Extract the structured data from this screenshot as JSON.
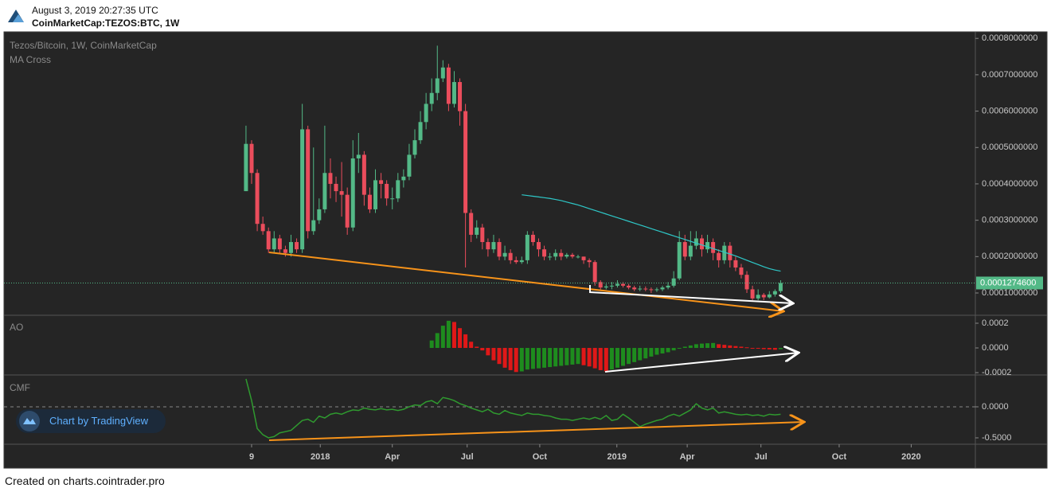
{
  "header": {
    "timestamp": "August 3, 2019 20:27:35 UTC",
    "symbol": "CoinMarketCap:TEZOS:BTC, 1W"
  },
  "footer": "Created on charts.cointrader.pro",
  "badge": "Chart by TradingView",
  "chart_data": {
    "type": "candlestick",
    "title": "Tezos/Bitcoin, 1W, CoinMarketCap",
    "up_color": "#53b987",
    "down_color": "#eb4d5c",
    "xlim": [
      -43,
      129.6
    ],
    "xticks": [
      {
        "value": 1,
        "label": "9"
      },
      {
        "value": 13.2,
        "label": "2018"
      },
      {
        "value": 26,
        "label": "Apr"
      },
      {
        "value": 39.3,
        "label": "Jul"
      },
      {
        "value": 52.2,
        "label": "Oct"
      },
      {
        "value": 65.9,
        "label": "2019"
      },
      {
        "value": 78.4,
        "label": "Apr"
      },
      {
        "value": 91.5,
        "label": "Jul"
      },
      {
        "value": 105.4,
        "label": "Oct"
      },
      {
        "value": 118.2,
        "label": "2020"
      }
    ],
    "ylim": [
      4.09e-05,
      0.000818
    ],
    "yticks": [
      {
        "value": 0.0008,
        "label": "0.0008000000"
      },
      {
        "value": 0.0007,
        "label": "0.0007000000"
      },
      {
        "value": 0.0006,
        "label": "0.0006000000"
      },
      {
        "value": 0.0005,
        "label": "0.0005000000"
      },
      {
        "value": 0.0004,
        "label": "0.0004000000"
      },
      {
        "value": 0.0003,
        "label": "0.0003000000"
      },
      {
        "value": 0.0002,
        "label": "0.0002000000"
      },
      {
        "value": 0.0001,
        "label": "0.0001000000"
      }
    ],
    "last_price": {
      "value": 0.00012746,
      "label": "0.0001274600"
    },
    "x": [
      0,
      1,
      2,
      3,
      4,
      5,
      6,
      7,
      8,
      9,
      10,
      11,
      12,
      13,
      14,
      15,
      16,
      17,
      18,
      19,
      20,
      21,
      22,
      23,
      24,
      25,
      26,
      27,
      28,
      29,
      30,
      31,
      32,
      33,
      34,
      35,
      36,
      37,
      38,
      39,
      40,
      41,
      42,
      43,
      44,
      45,
      46,
      47,
      48,
      49,
      50,
      51,
      52,
      53,
      54,
      55,
      56,
      57,
      58,
      59,
      60,
      61,
      62,
      63,
      64,
      65,
      66,
      67,
      68,
      69,
      70,
      71,
      72,
      73,
      74,
      75,
      76,
      77,
      78,
      79,
      80,
      81,
      82,
      83,
      84,
      85,
      86,
      87,
      88,
      89,
      90,
      91,
      92,
      93,
      94,
      95
    ],
    "open": [
      0.00038,
      0.00051,
      0.00043,
      0.00029,
      0.00027,
      0.00022,
      0.00025,
      0.00022,
      0.00021,
      0.00024,
      0.00022,
      0.00055,
      0.00027,
      0.0003,
      0.00033,
      0.00043,
      0.0004,
      0.00038,
      0.00037,
      0.00028,
      0.00047,
      0.00048,
      0.00037,
      0.00033,
      0.00041,
      0.0004,
      0.00036,
      0.00036,
      0.00041,
      0.00042,
      0.00048,
      0.00052,
      0.00057,
      0.00062,
      0.00065,
      0.00069,
      0.00072,
      0.00062,
      0.00068,
      0.0006,
      0.00032,
      0.00026,
      0.00028,
      0.00024,
      0.00022,
      0.00024,
      0.0002,
      0.00021,
      0.00019,
      0.000185,
      0.00019,
      0.00026,
      0.00024,
      0.00022,
      0.0002,
      0.0002,
      0.00021,
      0.0002,
      0.000205,
      0.0002,
      0.0002,
      0.00019,
      0.000185,
      0.00013,
      0.000115,
      0.000118,
      0.00012,
      0.000125,
      0.00012,
      0.000115,
      0.00011,
      0.000112,
      0.00011,
      0.000108,
      0.00011,
      0.000115,
      0.00012,
      0.00014,
      0.00024,
      0.0002,
      0.00023,
      0.00025,
      0.00022,
      0.00024,
      0.00021,
      0.00019,
      0.00023,
      0.00019,
      0.00017,
      0.00015,
      0.00011,
      8.5e-05,
      9.5e-05,
      8.8e-05,
      9.6e-05,
      0.000105
    ],
    "high": [
      0.00056,
      0.00052,
      0.00044,
      0.00031,
      0.00028,
      0.00027,
      0.00026,
      0.00023,
      0.00026,
      0.00025,
      0.00062,
      0.00056,
      0.0005,
      0.00036,
      0.00056,
      0.00047,
      0.00042,
      0.00046,
      0.00039,
      0.00052,
      0.00054,
      0.00049,
      0.00039,
      0.00044,
      0.00043,
      0.00041,
      0.00039,
      0.00043,
      0.00044,
      0.00051,
      0.00055,
      0.0006,
      0.00065,
      0.00069,
      0.00078,
      0.00074,
      0.00073,
      0.00071,
      0.00069,
      0.00062,
      0.00033,
      0.0003,
      0.00029,
      0.00025,
      0.00026,
      0.00025,
      0.00023,
      0.00022,
      0.0002,
      0.0002,
      0.00027,
      0.00027,
      0.00025,
      0.00023,
      0.00021,
      0.00022,
      0.00022,
      0.00021,
      0.00021,
      0.000205,
      0.0002,
      0.000195,
      0.00019,
      0.000135,
      0.000125,
      0.00013,
      0.000135,
      0.00013,
      0.000125,
      0.00012,
      0.00012,
      0.000118,
      0.000115,
      0.000115,
      0.00012,
      0.00013,
      0.00016,
      0.00027,
      0.00026,
      0.00027,
      0.00027,
      0.00026,
      0.00026,
      0.00025,
      0.00022,
      0.00024,
      0.00024,
      0.0002,
      0.00018,
      0.00016,
      0.00012,
      0.00011,
      0.0001,
      0.000105,
      0.00011,
      0.000135
    ],
    "low": [
      0.00038,
      0.0004,
      0.00027,
      0.00026,
      0.00021,
      0.00021,
      0.00021,
      0.0002,
      0.0002,
      0.00021,
      0.00021,
      0.00025,
      0.00026,
      0.00029,
      0.00032,
      0.00036,
      0.00035,
      0.00031,
      0.00026,
      0.00027,
      0.00043,
      0.00034,
      0.00032,
      0.00032,
      0.00036,
      0.00034,
      0.00033,
      0.00035,
      0.00039,
      0.00041,
      0.00047,
      0.00051,
      0.00055,
      0.0006,
      0.00063,
      0.00068,
      0.0006,
      0.00061,
      0.00056,
      0.00017,
      0.00024,
      0.00025,
      0.00022,
      0.0002,
      0.00021,
      0.00019,
      0.00019,
      0.00018,
      0.00018,
      0.00018,
      0.00018,
      0.00023,
      0.0002,
      0.00019,
      0.00019,
      0.00019,
      0.00019,
      0.000195,
      0.000195,
      0.000195,
      0.00018,
      0.00017,
      0.00012,
      0.00011,
      0.00011,
      0.00011,
      0.000115,
      0.000115,
      0.00011,
      0.000105,
      0.000105,
      0.000105,
      0.0001,
      0.000103,
      0.000105,
      0.00011,
      0.000115,
      0.000135,
      0.00019,
      0.00019,
      0.00022,
      0.0002,
      0.00021,
      0.00019,
      0.00017,
      0.00018,
      0.00017,
      0.00016,
      0.00014,
      0.0001,
      8e-05,
      8e-05,
      8e-05,
      8.5e-05,
      9e-05,
      0.0001
    ],
    "close": [
      0.00051,
      0.00043,
      0.00029,
      0.00027,
      0.00022,
      0.00025,
      0.00022,
      0.00021,
      0.00024,
      0.00022,
      0.00055,
      0.00027,
      0.0003,
      0.00033,
      0.00043,
      0.0004,
      0.00038,
      0.00037,
      0.00028,
      0.00047,
      0.00048,
      0.00037,
      0.00033,
      0.00041,
      0.0004,
      0.00036,
      0.00036,
      0.00041,
      0.00042,
      0.00048,
      0.00052,
      0.00057,
      0.00062,
      0.00065,
      0.00069,
      0.00072,
      0.00062,
      0.00068,
      0.0006,
      0.00032,
      0.00026,
      0.00028,
      0.00024,
      0.00022,
      0.00024,
      0.0002,
      0.00021,
      0.00019,
      0.000185,
      0.00019,
      0.00026,
      0.00024,
      0.00022,
      0.0002,
      0.0002,
      0.00021,
      0.0002,
      0.000205,
      0.0002,
      0.0002,
      0.00019,
      0.000185,
      0.00013,
      0.000115,
      0.000118,
      0.00012,
      0.000125,
      0.00012,
      0.000115,
      0.00011,
      0.000112,
      0.00011,
      0.000108,
      0.00011,
      0.000115,
      0.00012,
      0.00014,
      0.00024,
      0.0002,
      0.00023,
      0.00025,
      0.00022,
      0.00024,
      0.00021,
      0.00019,
      0.00023,
      0.00019,
      0.00017,
      0.00015,
      0.00011,
      8.5e-05,
      9.5e-05,
      8.8e-05,
      9.6e-05,
      0.000105,
      0.00012746
    ],
    "series": [
      {
        "name": "MA Cross",
        "color": "#2ec8c8",
        "values": [
          null,
          null,
          null,
          null,
          null,
          null,
          null,
          null,
          null,
          null,
          null,
          null,
          null,
          null,
          null,
          null,
          null,
          null,
          null,
          null,
          null,
          null,
          null,
          null,
          null,
          null,
          null,
          null,
          null,
          null,
          null,
          null,
          null,
          null,
          null,
          null,
          null,
          null,
          null,
          null,
          null,
          null,
          null,
          null,
          null,
          null,
          null,
          null,
          null,
          0.00037,
          0.000368,
          0.000366,
          0.000364,
          0.000362,
          0.00036,
          0.000357,
          0.000354,
          0.00035,
          0.000346,
          0.000342,
          0.000337,
          0.000332,
          0.000327,
          0.000322,
          0.000317,
          0.000312,
          0.000307,
          0.000302,
          0.000297,
          0.000292,
          0.000287,
          0.000282,
          0.000277,
          0.000272,
          0.000267,
          0.000262,
          0.000257,
          0.000252,
          0.000247,
          0.000242,
          0.000237,
          0.000232,
          0.000227,
          0.000222,
          0.000217,
          0.000212,
          0.000207,
          0.000202,
          0.000196,
          0.00019,
          0.000184,
          0.000178,
          0.000172,
          0.000167,
          0.000163,
          0.00016
        ]
      }
    ],
    "indicators": [
      {
        "name": "AO",
        "type": "bar",
        "up_color": "#1e8c1e",
        "down_color": "#e01818",
        "ylim": [
          -0.000219,
          0.000258
        ],
        "yticks": [
          0.0002,
          {
            "value": 0,
            "label": "0.0000"
          },
          -0.0002
        ],
        "values": [
          null,
          null,
          null,
          null,
          null,
          null,
          null,
          null,
          null,
          null,
          null,
          null,
          null,
          null,
          null,
          null,
          null,
          null,
          null,
          null,
          null,
          null,
          null,
          null,
          null,
          null,
          null,
          null,
          null,
          null,
          null,
          null,
          null,
          6e-05,
          0.00012,
          0.00018,
          0.00022,
          0.00021,
          0.00016,
          0.00011,
          5e-05,
          1e-05,
          -2e-05,
          -6e-05,
          -0.0001,
          -0.00013,
          -0.00016,
          -0.00018,
          -0.000195,
          -0.00019,
          -0.000175,
          -0.00017,
          -0.000165,
          -0.00016,
          -0.000155,
          -0.00015,
          -0.000145,
          -0.00014,
          -0.000135,
          -0.00013,
          -0.00014,
          -0.00015,
          -0.000165,
          -0.00018,
          -0.00019,
          -0.000175,
          -0.00016,
          -0.000145,
          -0.00013,
          -0.000115,
          -0.0001,
          -8.5e-05,
          -7e-05,
          -5.5e-05,
          -4.5e-05,
          -3.5e-05,
          -2e-05,
          -5e-06,
          1e-05,
          2e-05,
          3e-05,
          3.5e-05,
          3.8e-05,
          4e-05,
          3e-05,
          2.5e-05,
          2e-05,
          1.5e-05,
          1e-05,
          5e-06,
          0,
          -5e-06,
          -1e-05,
          -1.2e-05,
          -1.5e-05,
          -1e-05
        ]
      },
      {
        "name": "CMF",
        "type": "line",
        "color": "#2f9a2f",
        "ylim": [
          -0.603,
          0.5
        ],
        "yticks": [
          {
            "value": 0,
            "label": "0.0000"
          },
          {
            "value": -0.5,
            "label": "-0.5000"
          }
        ],
        "values": [
          0.45,
          0.1,
          -0.35,
          -0.45,
          -0.5,
          -0.48,
          -0.42,
          -0.4,
          -0.38,
          -0.3,
          -0.22,
          -0.2,
          -0.25,
          -0.15,
          -0.18,
          -0.12,
          -0.1,
          -0.12,
          -0.08,
          -0.05,
          -0.06,
          -0.02,
          -0.04,
          -0.05,
          -0.03,
          -0.05,
          -0.04,
          -0.06,
          -0.04,
          0.0,
          0.03,
          0.02,
          0.08,
          0.1,
          0.05,
          0.15,
          0.13,
          0.1,
          0.05,
          0.02,
          -0.02,
          -0.05,
          -0.08,
          -0.04,
          -0.1,
          -0.12,
          -0.06,
          -0.1,
          -0.12,
          -0.14,
          -0.1,
          -0.12,
          -0.12,
          -0.14,
          -0.15,
          -0.18,
          -0.2,
          -0.2,
          -0.22,
          -0.2,
          -0.18,
          -0.2,
          -0.17,
          -0.2,
          -0.14,
          -0.22,
          -0.2,
          -0.12,
          -0.18,
          -0.25,
          -0.32,
          -0.28,
          -0.25,
          -0.22,
          -0.2,
          -0.15,
          -0.12,
          -0.15,
          -0.1,
          -0.05,
          0.05,
          -0.02,
          -0.05,
          -0.02,
          -0.1,
          -0.08,
          -0.1,
          -0.12,
          -0.13,
          -0.12,
          -0.14,
          -0.13,
          -0.15,
          -0.12,
          -0.13,
          -0.12
        ]
      }
    ]
  }
}
